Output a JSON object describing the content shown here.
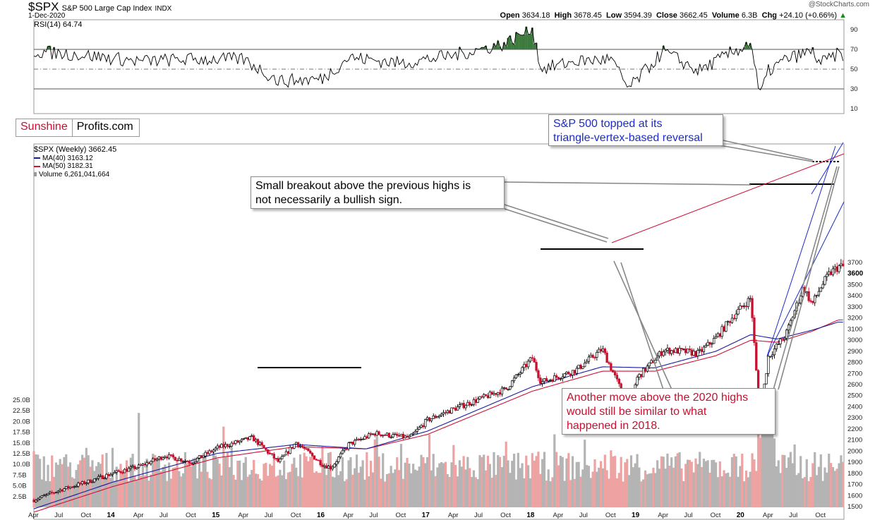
{
  "header": {
    "symbol": "$SPX",
    "name": "S&P 500 Large Cap Index",
    "exchange": "INDX",
    "date": "1-Dec-2020",
    "brand": "@StockCharts.com",
    "open_label": "Open",
    "open": "3634.18",
    "high_label": "High",
    "high": "3678.45",
    "low_label": "Low",
    "low": "3594.39",
    "close_label": "Close",
    "close": "3662.45",
    "volume_label": "Volume",
    "volume": "6.3B",
    "chg_label": "Chg",
    "chg": "+24.10 (+0.66%)",
    "chg_arrow": "▲"
  },
  "logo": {
    "part1": "Sunshine",
    "part2": "Profits.com"
  },
  "legend": {
    "main": "$SPX (Weekly) 3662.45",
    "ma40": "MA(40) 3163.12",
    "ma50": "MA(50) 3182.31",
    "volume": "Volume 6,261,041,664"
  },
  "rsi_label": "RSI(14) 64.74",
  "annotations": {
    "a1": "S&P 500 topped at its triangle-vertex-based reversal",
    "a1_line1": "S&P 500 topped at its",
    "a1_line2": "triangle-vertex-based reversal",
    "a2_line1": "Small breakout above the previous highs is",
    "a2_line2": "not necessarily a bullish sign.",
    "a3_line1": "Another move above the 2020 highs",
    "a3_line2": "would still be similar to what",
    "a3_line3": "happened in 2018."
  },
  "colors": {
    "up": "#000000",
    "down": "#c8102e",
    "ma40": "#1a1aa0",
    "ma50": "#d01036",
    "rsi_fill": "#3d7a3d",
    "vol_up": "#b4b4b4",
    "vol_down": "#eea3a3",
    "trend_blue": "#1c2cc8",
    "trend_red": "#d01036",
    "a1_text": "#1c2cc8",
    "a3_text": "#c8102e"
  },
  "chart_data": [
    {
      "type": "line",
      "title": "RSI(14)",
      "ylim": [
        0,
        100
      ],
      "reference_levels": [
        30,
        50,
        70
      ],
      "yticks": [
        10,
        30,
        50,
        70,
        90
      ],
      "last": 64.74,
      "x": [
        "2013-04",
        "2013-10",
        "2014-04",
        "2014-10",
        "2015-04",
        "2015-08",
        "2016-01",
        "2016-04",
        "2016-10",
        "2017-04",
        "2017-10",
        "2018-01",
        "2018-02",
        "2018-06",
        "2018-10",
        "2018-12",
        "2019-04",
        "2019-08",
        "2019-10",
        "2020-01",
        "2020-02",
        "2020-03",
        "2020-04",
        "2020-06",
        "2020-09",
        "2020-10",
        "2020-12"
      ],
      "y": [
        68,
        64,
        58,
        60,
        60,
        38,
        40,
        62,
        56,
        64,
        76,
        92,
        50,
        58,
        60,
        30,
        68,
        48,
        58,
        72,
        78,
        22,
        48,
        60,
        68,
        56,
        65
      ]
    },
    {
      "type": "line",
      "title": "$SPX (Weekly)",
      "ylim": [
        1500,
        3700
      ],
      "yticks": [
        1500,
        1600,
        1700,
        1800,
        1900,
        2000,
        2100,
        2200,
        2300,
        2400,
        2500,
        2600,
        2700,
        2800,
        2900,
        3000,
        3100,
        3200,
        3300,
        3400,
        3500,
        3600,
        3700
      ],
      "xticks": [
        "Apr",
        "Jul",
        "Oct",
        "14",
        "Apr",
        "Jul",
        "Oct",
        "15",
        "Apr",
        "Jul",
        "Oct",
        "16",
        "Apr",
        "Jul",
        "Oct",
        "17",
        "Apr",
        "Jul",
        "Oct",
        "18",
        "Apr",
        "Jul",
        "Oct",
        "19",
        "Apr",
        "Jul",
        "Oct",
        "20",
        "Apr",
        "Jul",
        "Oct"
      ],
      "series": [
        {
          "name": "$SPX (Weekly)",
          "x": [
            "2013-04",
            "2013-07",
            "2013-10",
            "2014-01",
            "2014-04",
            "2014-07",
            "2014-10",
            "2015-01",
            "2015-05",
            "2015-08",
            "2015-10",
            "2016-01",
            "2016-02",
            "2016-04",
            "2016-07",
            "2016-11",
            "2017-01",
            "2017-04",
            "2017-07",
            "2017-10",
            "2018-01",
            "2018-02",
            "2018-06",
            "2018-09",
            "2018-10",
            "2018-12",
            "2019-01",
            "2019-04",
            "2019-06",
            "2019-08",
            "2019-10",
            "2019-12",
            "2020-02",
            "2020-03",
            "2020-04",
            "2020-06",
            "2020-08",
            "2020-09",
            "2020-10",
            "2020-11",
            "2020-12"
          ],
          "values": [
            1560,
            1650,
            1720,
            1800,
            1860,
            1960,
            1900,
            2030,
            2120,
            1900,
            2080,
            1880,
            1850,
            2060,
            2160,
            2120,
            2280,
            2380,
            2470,
            2560,
            2840,
            2620,
            2730,
            2920,
            2750,
            2400,
            2660,
            2910,
            2900,
            2880,
            3020,
            3220,
            3380,
            2300,
            2850,
            3050,
            3480,
            3320,
            3480,
            3600,
            3662
          ]
        },
        {
          "name": "MA(40)",
          "x": [
            "2013-04",
            "2014-01",
            "2015-01",
            "2015-10",
            "2016-06",
            "2017-01",
            "2018-01",
            "2018-09",
            "2019-03",
            "2019-10",
            "2020-02",
            "2020-05",
            "2020-09",
            "2020-12"
          ],
          "values": [
            1480,
            1720,
            1980,
            2060,
            2020,
            2180,
            2580,
            2760,
            2750,
            2900,
            3050,
            3010,
            3090,
            3163
          ]
        },
        {
          "name": "MA(50)",
          "x": [
            "2013-04",
            "2014-01",
            "2015-01",
            "2015-10",
            "2016-06",
            "2017-01",
            "2018-01",
            "2018-09",
            "2019-03",
            "2019-10",
            "2020-02",
            "2020-05",
            "2020-09",
            "2020-12"
          ],
          "values": [
            1450,
            1680,
            1940,
            2040,
            2020,
            2150,
            2540,
            2720,
            2720,
            2860,
            3000,
            2980,
            3080,
            3182
          ]
        }
      ],
      "last": 3662.45
    },
    {
      "type": "bar",
      "title": "Volume",
      "yticks": [
        "2.5B",
        "5.0B",
        "7.5B",
        "10.0B",
        "12.5B",
        "15.0B",
        "17.5B",
        "20.0B",
        "22.5B",
        "25.0B"
      ],
      "ylim": [
        0,
        25
      ],
      "unit": "B",
      "last": 6.26
    }
  ]
}
